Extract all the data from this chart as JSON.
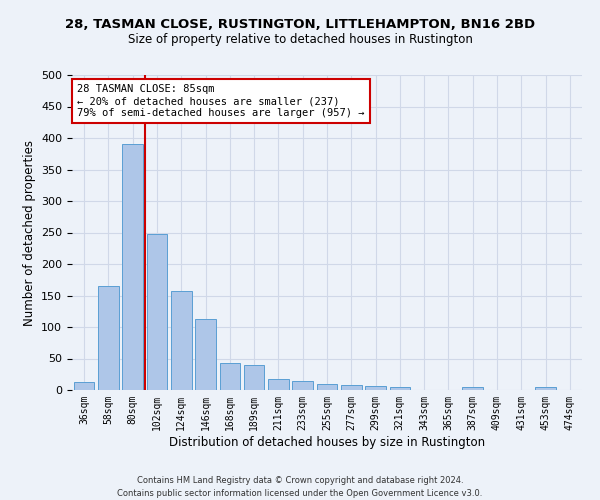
{
  "title1": "28, TASMAN CLOSE, RUSTINGTON, LITTLEHAMPTON, BN16 2BD",
  "title2": "Size of property relative to detached houses in Rustington",
  "xlabel": "Distribution of detached houses by size in Rustington",
  "ylabel": "Number of detached properties",
  "footer1": "Contains HM Land Registry data © Crown copyright and database right 2024.",
  "footer2": "Contains public sector information licensed under the Open Government Licence v3.0.",
  "categories": [
    "36sqm",
    "58sqm",
    "80sqm",
    "102sqm",
    "124sqm",
    "146sqm",
    "168sqm",
    "189sqm",
    "211sqm",
    "233sqm",
    "255sqm",
    "277sqm",
    "299sqm",
    "321sqm",
    "343sqm",
    "365sqm",
    "387sqm",
    "409sqm",
    "431sqm",
    "453sqm",
    "474sqm"
  ],
  "values": [
    13,
    165,
    390,
    248,
    157,
    113,
    43,
    39,
    17,
    15,
    10,
    8,
    6,
    4,
    0,
    0,
    5,
    0,
    0,
    5,
    0
  ],
  "bar_color": "#aec6e8",
  "bar_edge_color": "#5a9fd4",
  "vline_x_index": 2,
  "vline_color": "#cc0000",
  "annotation_line1": "28 TASMAN CLOSE: 85sqm",
  "annotation_line2": "← 20% of detached houses are smaller (237)",
  "annotation_line3": "79% of semi-detached houses are larger (957) →",
  "annotation_box_color": "#ffffff",
  "annotation_box_edge": "#cc0000",
  "ylim": [
    0,
    500
  ],
  "yticks": [
    0,
    50,
    100,
    150,
    200,
    250,
    300,
    350,
    400,
    450,
    500
  ],
  "grid_color": "#d0d8e8",
  "background_color": "#edf2f9",
  "plot_bg_color": "#edf2f9",
  "title1_fontsize": 9.5,
  "title2_fontsize": 8.5
}
